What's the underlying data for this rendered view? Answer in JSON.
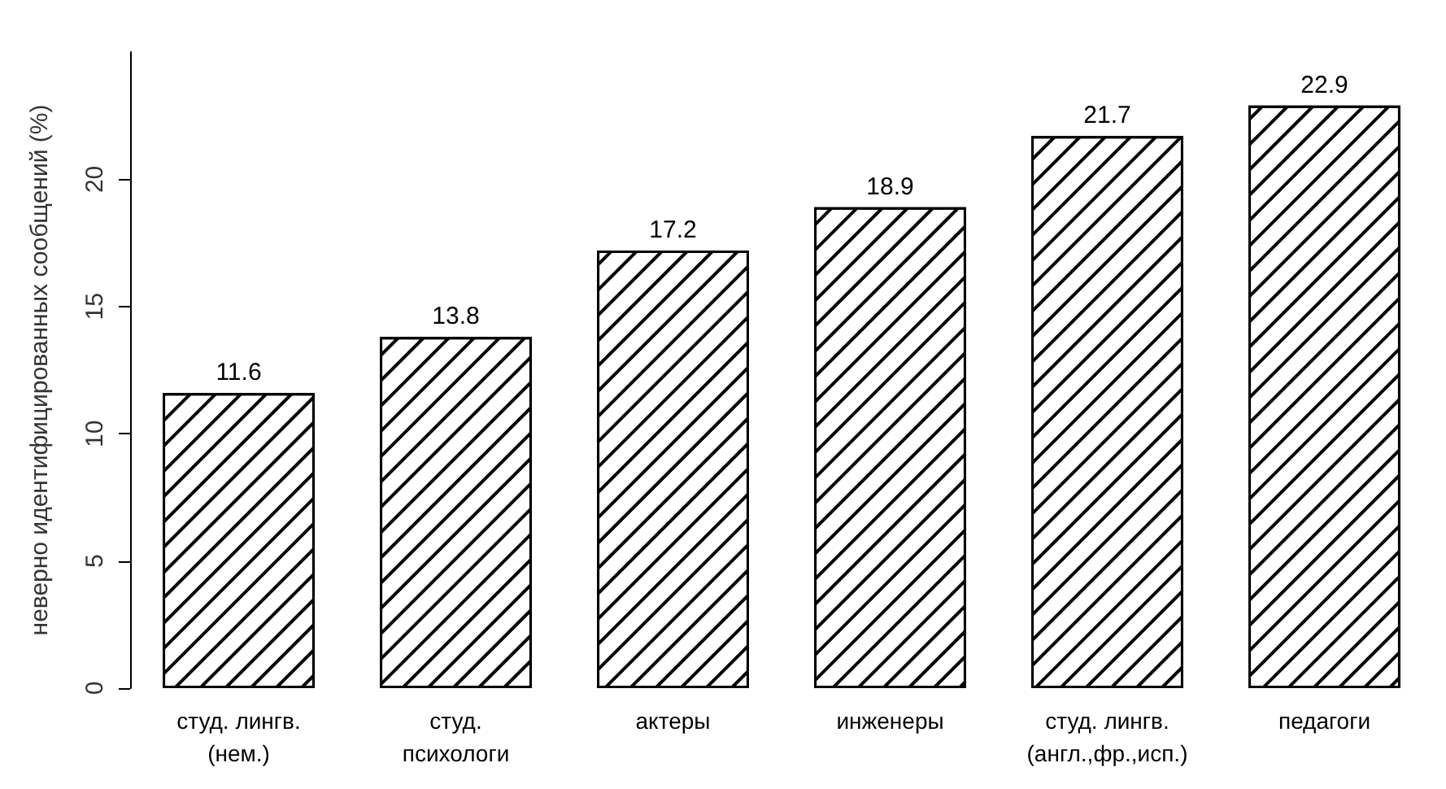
{
  "chart_data": {
    "type": "bar",
    "ylabel": "неверно идентифицированных сообщений (%)",
    "categories": [
      "студ. лингв.\n(нем.)",
      "студ.\nпсихологи",
      "актеры",
      "инженеры",
      "студ. лингв.\n(англ.,фр.,исп.)",
      "педагоги"
    ],
    "values": [
      11.6,
      13.8,
      17.2,
      18.9,
      21.7,
      22.9
    ],
    "color": "#ffffff",
    "ylim": [
      0,
      25
    ],
    "yticks": [
      0,
      5,
      10,
      15,
      20
    ],
    "grid": false,
    "data_labels": true
  }
}
